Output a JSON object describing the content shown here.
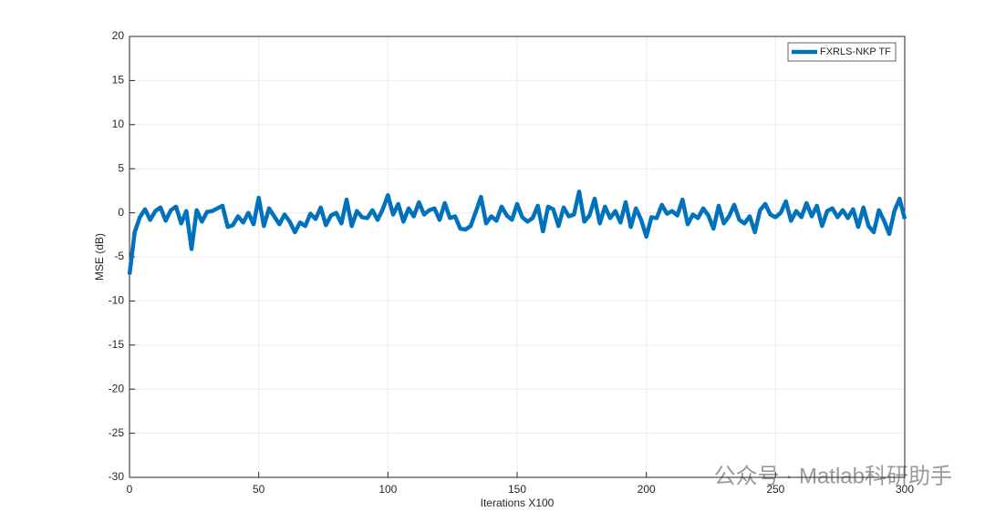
{
  "chart_data": {
    "type": "line",
    "xlabel": "Iterations X100",
    "ylabel": "MSE (dB)",
    "x": [
      0,
      2,
      4,
      6,
      8,
      10,
      12,
      14,
      16,
      18,
      20,
      22,
      24,
      26,
      28,
      30,
      32,
      34,
      36,
      38,
      40,
      42,
      44,
      46,
      48,
      50,
      52,
      54,
      56,
      58,
      60,
      62,
      64,
      66,
      68,
      70,
      72,
      74,
      76,
      78,
      80,
      82,
      84,
      86,
      88,
      90,
      92,
      94,
      96,
      98,
      100,
      102,
      104,
      106,
      108,
      110,
      112,
      114,
      116,
      118,
      120,
      122,
      124,
      126,
      128,
      130,
      132,
      134,
      136,
      138,
      140,
      142,
      144,
      146,
      148,
      150,
      152,
      154,
      156,
      158,
      160,
      162,
      164,
      166,
      168,
      170,
      172,
      174,
      176,
      178,
      180,
      182,
      184,
      186,
      188,
      190,
      192,
      194,
      196,
      198,
      200,
      202,
      204,
      206,
      208,
      210,
      212,
      214,
      216,
      218,
      220,
      222,
      224,
      226,
      228,
      230,
      232,
      234,
      236,
      238,
      240,
      242,
      244,
      246,
      248,
      250,
      252,
      254,
      256,
      258,
      260,
      262,
      264,
      266,
      268,
      270,
      272,
      274,
      276,
      278,
      280,
      282,
      284,
      286,
      288,
      290,
      292,
      294,
      296,
      298,
      300
    ],
    "series": [
      {
        "name": "FXRLS-NKP TF",
        "color": "#0072bd",
        "values": [
          -7,
          -2.2,
          -0.5,
          0.4,
          -0.8,
          0.2,
          0.6,
          -0.9,
          0.3,
          0.7,
          -1.2,
          0.2,
          -4.1,
          0.3,
          -1.0,
          0.1,
          0.2,
          0.5,
          0.8,
          -1.6,
          -1.4,
          -0.4,
          -1.1,
          0.0,
          -1.3,
          1.7,
          -1.5,
          0.5,
          -0.4,
          -1.3,
          -0.2,
          -1.0,
          -2.2,
          -1.1,
          -1.5,
          -0.1,
          -0.7,
          0.6,
          -1.4,
          -0.3,
          0.0,
          -1.2,
          1.5,
          -1.5,
          0.2,
          -0.5,
          -0.6,
          0.3,
          -0.8,
          0.4,
          2.0,
          -0.2,
          1.0,
          -1.0,
          0.5,
          -0.4,
          1.2,
          -0.2,
          0.3,
          0.5,
          -0.8,
          1.1,
          -0.6,
          -0.4,
          -1.8,
          -1.9,
          -1.5,
          0.1,
          1.8,
          -1.2,
          -0.4,
          -0.9,
          0.7,
          -0.3,
          -0.8,
          1.0,
          -0.5,
          -1.0,
          -0.6,
          0.8,
          -2.1,
          0.7,
          0.4,
          -1.5,
          0.6,
          -0.4,
          -0.2,
          2.4,
          -1.0,
          -0.3,
          1.6,
          -1.2,
          0.7,
          -0.6,
          0.2,
          -1.1,
          1.2,
          -1.6,
          0.5,
          -0.8,
          -2.7,
          -0.5,
          -0.6,
          0.9,
          -0.1,
          0.2,
          -0.3,
          1.5,
          -1.3,
          -0.2,
          -0.6,
          0.5,
          -0.3,
          -1.8,
          0.8,
          -1.2,
          -0.4,
          0.9,
          -0.8,
          -1.2,
          -0.4,
          -2.2,
          0.3,
          1.0,
          -0.2,
          -0.5,
          0.0,
          1.3,
          -0.9,
          0.2,
          -0.5,
          1.1,
          -0.4,
          0.8,
          -1.5,
          0.2,
          0.5,
          -0.5,
          0.3,
          -0.6,
          0.4,
          -1.6,
          0.6,
          -1.5,
          -2.2,
          0.3,
          -0.9,
          -2.4,
          0.2,
          1.6,
          -0.7
        ]
      }
    ],
    "xlim": [
      0,
      300
    ],
    "xticks": [
      0,
      50,
      100,
      150,
      200,
      250,
      300
    ],
    "ylim": [
      -30,
      20
    ],
    "yticks": [
      -30,
      -25,
      -20,
      -15,
      -10,
      -5,
      0,
      5,
      10,
      15,
      20
    ],
    "grid": true,
    "legend": "northeast",
    "watermark": "公众号 · Matlab科研助手"
  }
}
